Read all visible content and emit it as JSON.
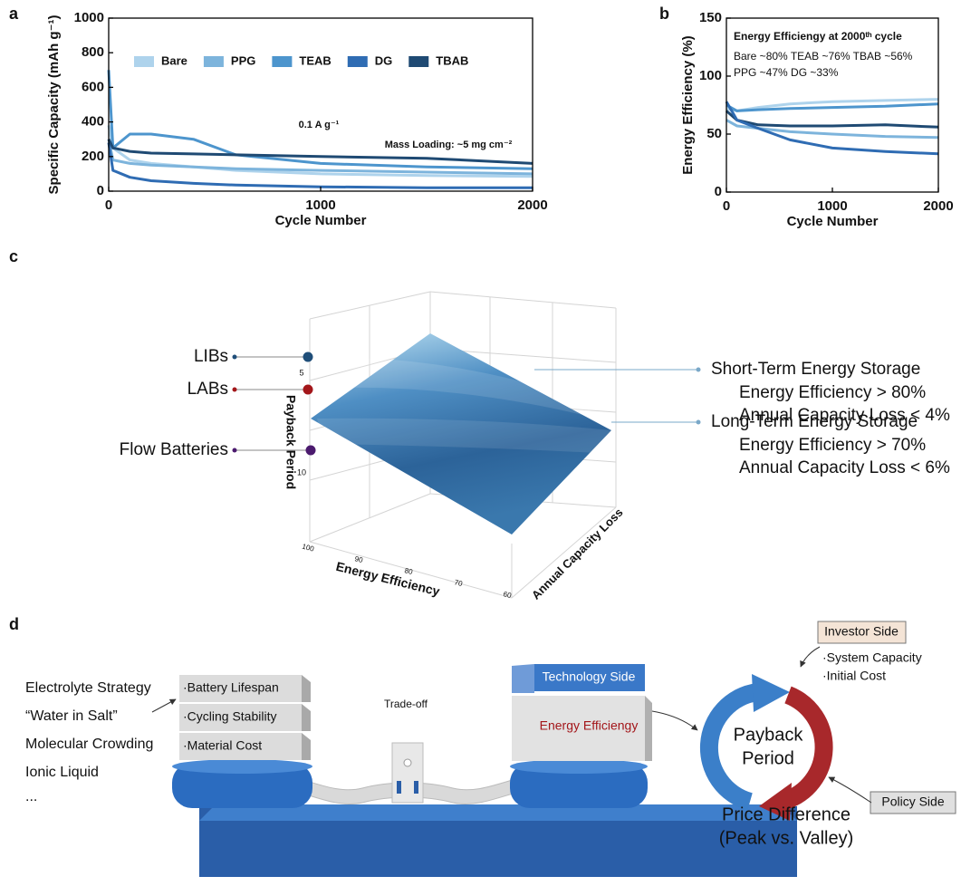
{
  "chart_data": [
    {
      "type": "line",
      "panel": "a",
      "xlabel": "Cycle Number",
      "ylabel": "Specific Capacity (mAh g⁻¹)",
      "annotations": [
        "0.1 A g⁻¹",
        "Mass Loading: ~5 mg cm⁻²"
      ],
      "xlim": [
        0,
        2000
      ],
      "xticks": [
        0,
        1000,
        2000
      ],
      "ylim": [
        0,
        1000
      ],
      "yticks": [
        0,
        200,
        400,
        600,
        800,
        1000
      ],
      "legend": "top",
      "x": [
        0,
        20,
        100,
        200,
        400,
        600,
        1000,
        1500,
        2000
      ],
      "series": [
        {
          "name": "Bare",
          "color": "#aed3ec",
          "values": [
            380,
            250,
            180,
            160,
            140,
            120,
            100,
            90,
            85
          ]
        },
        {
          "name": "PPG",
          "color": "#7db4dc",
          "values": [
            300,
            180,
            160,
            150,
            140,
            130,
            120,
            110,
            100
          ]
        },
        {
          "name": "TEAB",
          "color": "#4d95cd",
          "values": [
            700,
            250,
            330,
            330,
            300,
            210,
            160,
            140,
            130
          ]
        },
        {
          "name": "DG",
          "color": "#2f6cb3",
          "values": [
            280,
            120,
            80,
            60,
            45,
            35,
            25,
            20,
            20
          ]
        },
        {
          "name": "TBAB",
          "color": "#1f4a73",
          "values": [
            300,
            250,
            230,
            220,
            215,
            210,
            200,
            190,
            160
          ]
        }
      ]
    },
    {
      "type": "line",
      "panel": "b",
      "xlabel": "Cycle Number",
      "ylabel": "Energy Efficiency (%)",
      "annotation_title": "Energy Efficiengy at 2000ᵗʰ cycle",
      "annotations": [
        "Bare ~80%  TEAB ~76%  TBAB ~56%",
        "PPG ~47% DG ~33%"
      ],
      "xlim": [
        0,
        2000
      ],
      "xticks": [
        0,
        1000,
        2000
      ],
      "ylim": [
        0,
        150
      ],
      "yticks": [
        0,
        50,
        100,
        150
      ],
      "x": [
        0,
        100,
        300,
        600,
        1000,
        1500,
        2000
      ],
      "series": [
        {
          "color": "#aed3ec",
          "values": [
            72,
            70,
            73,
            76,
            78,
            79,
            80
          ]
        },
        {
          "color": "#4d95cd",
          "values": [
            75,
            70,
            71,
            72,
            73,
            74,
            76
          ]
        },
        {
          "color": "#1f4a73",
          "values": [
            70,
            62,
            58,
            57,
            57,
            58,
            56
          ]
        },
        {
          "color": "#7db4dc",
          "values": [
            62,
            57,
            55,
            52,
            50,
            48,
            47
          ]
        },
        {
          "color": "#2f6cb3",
          "values": [
            78,
            62,
            55,
            45,
            38,
            35,
            33
          ]
        }
      ]
    }
  ],
  "panel_c": {
    "label": "c",
    "axis_labels": {
      "z": "Payback Period",
      "x": "Energy Efficiency",
      "y": "Annual Capacity Loss"
    },
    "z_ticks": [
      "5",
      "10"
    ],
    "x_ticks": [
      "100",
      "90",
      "80",
      "70",
      "60"
    ],
    "markers": [
      "LIBs",
      "LABs",
      "Flow Batteries"
    ],
    "callouts": [
      {
        "title": "Short-Term Energy Storage",
        "lines": [
          "Energy Efficiency > 80%",
          "Annual Capacity Loss < 4%"
        ]
      },
      {
        "title": "Long-Term Energy Storage",
        "lines": [
          "Energy Efficiency > 70%",
          "Annual Capacity Loss < 6%"
        ]
      }
    ]
  },
  "panel_d": {
    "label": "d",
    "strategies": [
      "Electrolyte Strategy",
      "“Water in Salt”",
      "Molecular Crowding",
      "Ionic Liquid",
      "..."
    ],
    "left_blocks": [
      "·Battery Lifespan",
      "·Cycling Stability",
      "·Material Cost"
    ],
    "center_label": "Trade-off",
    "right_blocks": [
      "Technology Side",
      "Energy Efficiengy"
    ],
    "investor": {
      "title": "Investor Side",
      "items": [
        "·System Capacity",
        "·Initial Cost"
      ]
    },
    "cycle_center": [
      "Payback",
      "Period"
    ],
    "policy": {
      "title": "Policy Side"
    },
    "outcome": [
      "Price Difference",
      "(Peak vs. Valley)"
    ]
  }
}
